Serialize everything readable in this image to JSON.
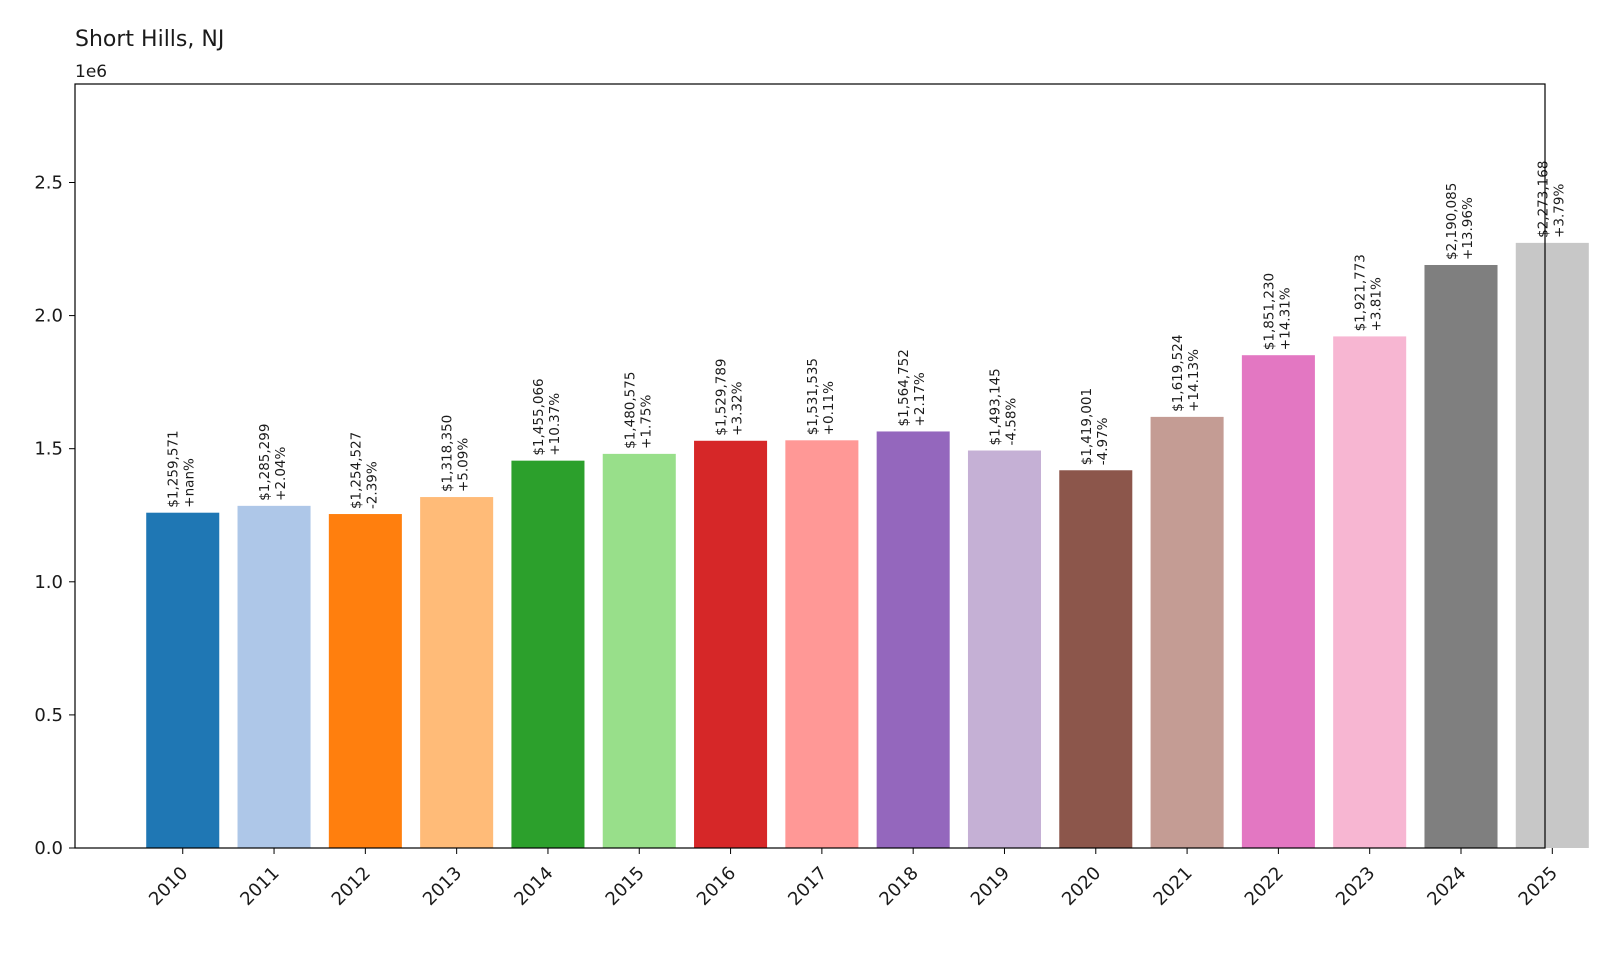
{
  "chart_data": {
    "type": "bar",
    "title": "Short Hills, NJ",
    "axis_offset_label": "1e6",
    "xlabel": "",
    "ylabel": "",
    "ylim": [
      0,
      2870000
    ],
    "yticks": [
      0.0,
      0.5,
      1.0,
      1.5,
      2.0,
      2.5
    ],
    "ytick_labels": [
      "0.0",
      "0.5",
      "1.0",
      "1.5",
      "2.0",
      "2.5"
    ],
    "y_unit_multiplier": 1000000,
    "grid": false,
    "legend": "none",
    "categories": [
      "2010",
      "2011",
      "2012",
      "2013",
      "2014",
      "2015",
      "2016",
      "2017",
      "2018",
      "2019",
      "2020",
      "2021",
      "2022",
      "2023",
      "2024",
      "2025"
    ],
    "values": [
      1259571,
      1285299,
      1254527,
      1318350,
      1455066,
      1480575,
      1529789,
      1531535,
      1564752,
      1493145,
      1419001,
      1619524,
      1851230,
      1921773,
      2190085,
      2273168
    ],
    "value_labels": [
      "$1,259,571",
      "$1,285,299",
      "$1,254,527",
      "$1,318,350",
      "$1,455,066",
      "$1,480,575",
      "$1,529,789",
      "$1,531,535",
      "$1,564,752",
      "$1,493,145",
      "$1,419,001",
      "$1,619,524",
      "$1,851,230",
      "$1,921,773",
      "$2,190,085",
      "$2,273,168"
    ],
    "change_labels": [
      "+nan%",
      "+2.04%",
      "-2.39%",
      "+5.09%",
      "+10.37%",
      "+1.75%",
      "+3.32%",
      "+0.11%",
      "+2.17%",
      "-4.58%",
      "-4.97%",
      "+14.13%",
      "+14.31%",
      "+3.81%",
      "+13.96%",
      "+3.79%"
    ],
    "colors": [
      "#1f77b4",
      "#aec7e8",
      "#ff7f0e",
      "#ffbb78",
      "#2ca02c",
      "#98df8a",
      "#d62728",
      "#ff9896",
      "#9467bd",
      "#c5b0d5",
      "#8c564b",
      "#c49c94",
      "#e377c2",
      "#f7b6d2",
      "#7f7f7f",
      "#c7c7c7"
    ]
  }
}
